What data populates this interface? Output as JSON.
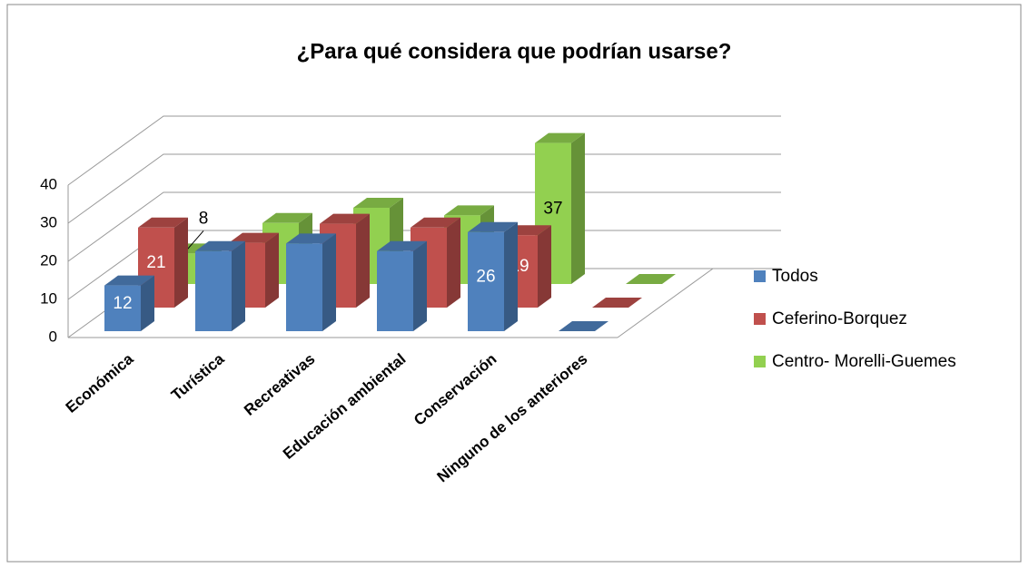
{
  "chart_data": {
    "type": "bar3d",
    "title": "¿Para qué considera que podrían usarse?",
    "categories": [
      "Económica",
      "Turística",
      "Recreativas",
      "Educación ambiental",
      "Conservación",
      "Ninguno de los anteriores"
    ],
    "series": [
      {
        "name": "Todos",
        "color": "#4f81bd",
        "values": [
          12,
          21,
          23,
          21,
          26,
          0
        ],
        "value_labels": [
          "12",
          null,
          null,
          null,
          "26",
          null
        ]
      },
      {
        "name": "Ceferino-Borquez",
        "color": "#c0504d",
        "values": [
          21,
          17,
          22,
          21,
          19,
          0
        ],
        "value_labels": [
          "21",
          null,
          null,
          null,
          "19",
          null
        ]
      },
      {
        "name": "Centro- Morelli-Guemes",
        "color": "#92d050",
        "values": [
          8,
          16,
          20,
          18,
          37,
          0
        ],
        "value_labels": [
          "8",
          null,
          null,
          null,
          "37",
          null
        ]
      }
    ],
    "ylim": [
      0,
      40
    ],
    "yticks": [
      0,
      10,
      20,
      30,
      40
    ],
    "grid": true,
    "legend": "right"
  }
}
